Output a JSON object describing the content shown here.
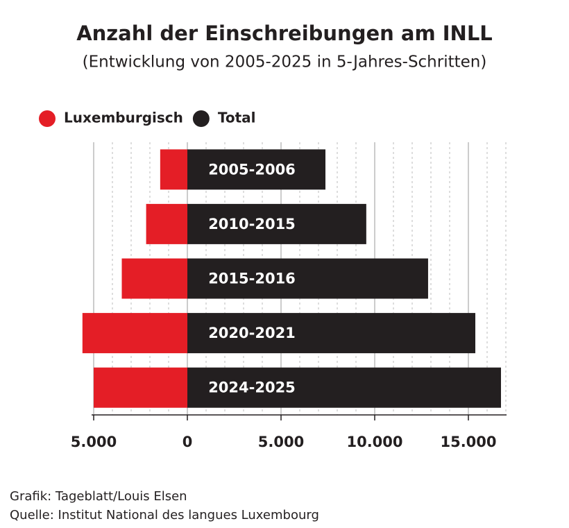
{
  "chart_data": {
    "type": "diverging-bar",
    "title": "Anzahl der Einschreibungen am INLL",
    "subtitle": "(Entwicklung von 2005-2025 in 5-Jahres-Schritten)",
    "categories": [
      "2005-2006",
      "2010-2015",
      "2015-2016",
      "2020-2021",
      "2024-2025"
    ],
    "series": [
      {
        "name": "Luxemburgisch",
        "color": "#e41e26",
        "values": [
          -1450,
          -2200,
          -3500,
          -5600,
          -5000
        ]
      },
      {
        "name": "Total",
        "color": "#231f20",
        "values": [
          7370,
          9550,
          12850,
          15370,
          16740
        ]
      }
    ],
    "xlim": [
      -5000,
      17000
    ],
    "xticks": [
      {
        "value": -5000,
        "label": "5.000"
      },
      0,
      {
        "value": 5000,
        "label": "5.000"
      },
      {
        "value": 10000,
        "label": "10.000"
      },
      {
        "value": 15000,
        "label": "15.000"
      }
    ],
    "minor_xticks": [
      -4000,
      -3000,
      -2000,
      -1000,
      1000,
      2000,
      3000,
      4000,
      6000,
      7000,
      8000,
      9000,
      11000,
      12000,
      13000,
      14000,
      16000,
      17000
    ],
    "grid": true,
    "legend": "top-left",
    "credit": "Grafik: Tageblatt/Louis Elsen",
    "source": "Quelle: Institut National des langues Luxembourg"
  }
}
